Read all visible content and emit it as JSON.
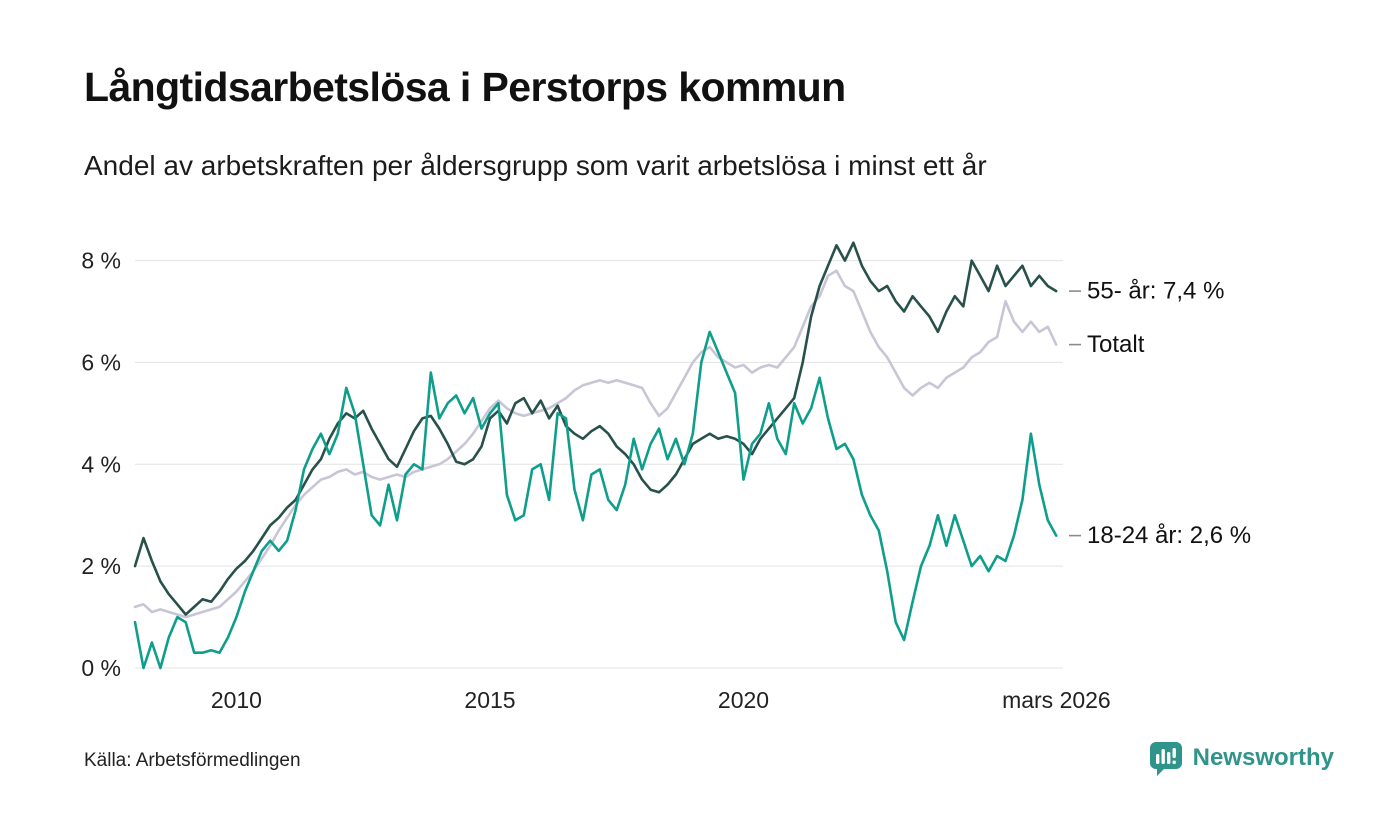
{
  "header": {
    "title": "Långtidsarbetslösa i Perstorps kommun",
    "subtitle": "Andel av arbetskraften per åldersgrupp som varit arbetslösa i minst ett år"
  },
  "footer": {
    "source": "Källa: Arbetsförmedlingen",
    "brand": "Newsworthy",
    "brand_color": "#2f948a"
  },
  "chart_data": {
    "type": "line",
    "title": "Långtidsarbetslösa i Perstorps kommun",
    "subtitle": "Andel av arbetskraften per åldersgrupp som varit arbetslösa i minst ett år",
    "grid": true,
    "legend_position": "end-of-line labels (right)",
    "x_unit": "year (decimal, samples every 2 months)",
    "x_start": 2008.0,
    "x_step": 0.166667,
    "x_axis": {
      "range": [
        2008.0,
        2026.3
      ],
      "ticks": [
        {
          "value": 2010,
          "label": "2010"
        },
        {
          "value": 2015,
          "label": "2015"
        },
        {
          "value": 2020,
          "label": "2020"
        },
        {
          "value": 2026.17,
          "label": "mars 2026"
        }
      ]
    },
    "y_axis": {
      "range": [
        0,
        8.6
      ],
      "ticks": [
        {
          "value": 0,
          "label": "0 %"
        },
        {
          "value": 2,
          "label": "2 %"
        },
        {
          "value": 4,
          "label": "4 %"
        },
        {
          "value": 6,
          "label": "6 %"
        },
        {
          "value": 8,
          "label": "8 %"
        }
      ]
    },
    "series": [
      {
        "id": "55",
        "name": "55- år",
        "end_label": "55- år: 7,4 %",
        "end_value": "7,4 %",
        "color": "#27514a",
        "values": [
          2.0,
          2.55,
          2.1,
          1.7,
          1.45,
          1.25,
          1.05,
          1.2,
          1.35,
          1.3,
          1.5,
          1.75,
          1.95,
          2.1,
          2.3,
          2.55,
          2.8,
          2.95,
          3.15,
          3.3,
          3.6,
          3.9,
          4.1,
          4.5,
          4.8,
          5.0,
          4.9,
          5.05,
          4.7,
          4.4,
          4.1,
          3.95,
          4.3,
          4.65,
          4.9,
          4.95,
          4.7,
          4.4,
          4.05,
          4.0,
          4.1,
          4.35,
          4.9,
          5.05,
          4.8,
          5.2,
          5.3,
          5.0,
          5.25,
          4.9,
          5.15,
          4.75,
          4.6,
          4.5,
          4.65,
          4.75,
          4.6,
          4.35,
          4.2,
          4.0,
          3.7,
          3.5,
          3.45,
          3.6,
          3.8,
          4.1,
          4.4,
          4.5,
          4.6,
          4.5,
          4.55,
          4.5,
          4.4,
          4.2,
          4.5,
          4.7,
          4.9,
          5.1,
          5.3,
          6.0,
          6.9,
          7.5,
          7.9,
          8.3,
          8.0,
          8.35,
          7.9,
          7.6,
          7.4,
          7.5,
          7.2,
          7.0,
          7.3,
          7.1,
          6.9,
          6.6,
          7.0,
          7.3,
          7.1,
          8.0,
          7.7,
          7.4,
          7.9,
          7.5,
          7.7,
          7.9,
          7.5,
          7.7,
          7.5,
          7.4
        ]
      },
      {
        "id": "totalt",
        "name": "Totalt",
        "end_label": "Totalt",
        "end_value": "6,4 %",
        "color": "#c8c6d6",
        "values": [
          1.2,
          1.25,
          1.1,
          1.15,
          1.1,
          1.05,
          1.0,
          1.05,
          1.1,
          1.15,
          1.2,
          1.35,
          1.5,
          1.7,
          1.9,
          2.15,
          2.4,
          2.7,
          2.95,
          3.2,
          3.4,
          3.55,
          3.7,
          3.75,
          3.85,
          3.9,
          3.8,
          3.85,
          3.75,
          3.7,
          3.75,
          3.8,
          3.75,
          3.85,
          3.9,
          3.95,
          4.0,
          4.1,
          4.25,
          4.4,
          4.6,
          4.85,
          5.1,
          5.25,
          5.1,
          5.0,
          4.95,
          5.0,
          5.05,
          5.1,
          5.2,
          5.3,
          5.45,
          5.55,
          5.6,
          5.65,
          5.6,
          5.65,
          5.6,
          5.55,
          5.5,
          5.2,
          4.95,
          5.1,
          5.4,
          5.7,
          6.0,
          6.2,
          6.3,
          6.1,
          6.0,
          5.9,
          5.95,
          5.8,
          5.9,
          5.95,
          5.9,
          6.1,
          6.3,
          6.7,
          7.1,
          7.3,
          7.7,
          7.8,
          7.5,
          7.4,
          7.0,
          6.6,
          6.3,
          6.1,
          5.8,
          5.5,
          5.35,
          5.5,
          5.6,
          5.5,
          5.7,
          5.8,
          5.9,
          6.1,
          6.2,
          6.4,
          6.5,
          7.2,
          6.8,
          6.6,
          6.8,
          6.6,
          6.7,
          6.35
        ]
      },
      {
        "id": "18-24",
        "name": "18-24 år",
        "end_label": "18-24 år: 2,6 %",
        "end_value": "2,6 %",
        "color": "#0f9e8c",
        "values": [
          0.9,
          0.0,
          0.5,
          0.0,
          0.6,
          1.0,
          0.9,
          0.3,
          0.3,
          0.35,
          0.3,
          0.6,
          1.0,
          1.5,
          1.9,
          2.3,
          2.5,
          2.3,
          2.5,
          3.1,
          3.9,
          4.3,
          4.6,
          4.2,
          4.6,
          5.5,
          5.0,
          4.0,
          3.0,
          2.8,
          3.6,
          2.9,
          3.8,
          4.0,
          3.9,
          5.8,
          4.9,
          5.2,
          5.35,
          5.0,
          5.3,
          4.7,
          5.0,
          5.2,
          3.4,
          2.9,
          3.0,
          3.9,
          4.0,
          3.3,
          5.0,
          4.9,
          3.5,
          2.9,
          3.8,
          3.9,
          3.3,
          3.1,
          3.6,
          4.5,
          3.9,
          4.4,
          4.7,
          4.1,
          4.5,
          4.0,
          4.6,
          6.0,
          6.6,
          6.2,
          5.8,
          5.4,
          3.7,
          4.4,
          4.6,
          5.2,
          4.5,
          4.2,
          5.2,
          4.8,
          5.1,
          5.7,
          4.9,
          4.3,
          4.4,
          4.1,
          3.4,
          3.0,
          2.7,
          1.9,
          0.9,
          0.55,
          1.3,
          2.0,
          2.4,
          3.0,
          2.4,
          3.0,
          2.5,
          2.0,
          2.2,
          1.9,
          2.2,
          2.1,
          2.6,
          3.3,
          4.6,
          3.6,
          2.9,
          2.6
        ]
      }
    ]
  }
}
